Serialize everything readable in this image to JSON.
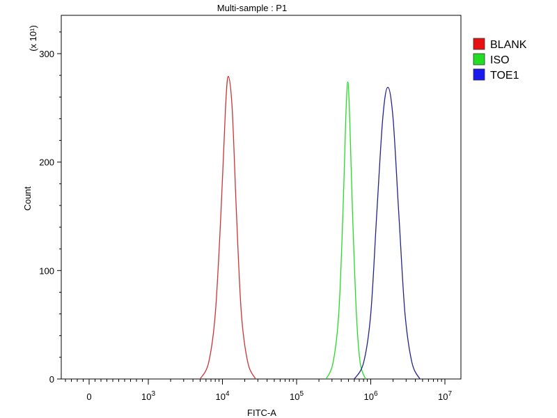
{
  "chart_data": {
    "type": "line",
    "title": "Multi-sample : P1",
    "xlabel": "FITC-A",
    "ylabel": "Count",
    "y_multiplier": "(x 10¹)",
    "xscale": "biexponential-log",
    "ylim": [
      0,
      330
    ],
    "grid": false,
    "legend_position": "top-right",
    "x_ticks": [
      {
        "value": 0,
        "base": "0",
        "exp": ""
      },
      {
        "value": 1000,
        "base": "10",
        "exp": "3"
      },
      {
        "value": 10000,
        "base": "10",
        "exp": "4"
      },
      {
        "value": 100000,
        "base": "10",
        "exp": "5"
      },
      {
        "value": 1000000,
        "base": "10",
        "exp": "6"
      },
      {
        "value": 10000000,
        "base": "10",
        "exp": "7"
      }
    ],
    "y_ticks": [
      0,
      100,
      200,
      300
    ],
    "series": [
      {
        "name": "BLANK",
        "color": "#cc3333",
        "legend_color": "#e81010",
        "x": [
          5000,
          6500,
          8000,
          9500,
          11000,
          12000,
          13500,
          15500,
          18000,
          22000,
          28000
        ],
        "y": [
          0,
          15,
          60,
          150,
          250,
          279,
          250,
          150,
          60,
          15,
          0
        ]
      },
      {
        "name": "ISO",
        "color": "#22dd22",
        "legend_color": "#22dd22",
        "x": [
          250000,
          310000,
          370000,
          420000,
          460000,
          490000,
          520000,
          570000,
          640000,
          720000,
          850000
        ],
        "y": [
          0,
          15,
          60,
          150,
          240,
          274,
          240,
          150,
          60,
          15,
          0
        ]
      },
      {
        "name": "TOE1",
        "color": "#222288",
        "legend_color": "#1a1aee",
        "x": [
          600000,
          800000,
          1000000,
          1200000,
          1450000,
          1700000,
          2000000,
          2400000,
          2900000,
          3600000,
          4600000
        ],
        "y": [
          0,
          15,
          60,
          150,
          240,
          269,
          240,
          150,
          60,
          15,
          0
        ]
      }
    ]
  }
}
